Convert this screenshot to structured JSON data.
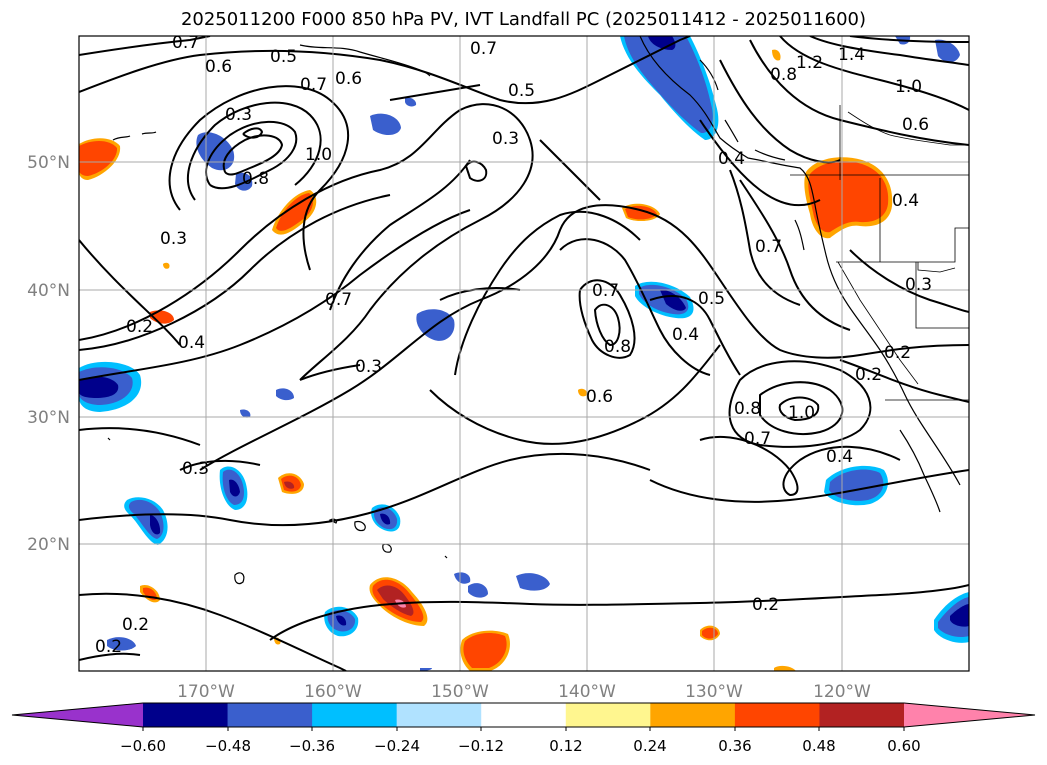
{
  "title": "2025011200 F000 850 hPa PV, IVT Landfall PC (2025011412 - 2025011600)",
  "axes": {
    "lat_labels": [
      "50°N",
      "40°N",
      "30°N",
      "20°N"
    ],
    "lon_labels": [
      "170°W",
      "160°W",
      "150°W",
      "140°W",
      "130°W",
      "120°W"
    ]
  },
  "colorbar": {
    "colors": [
      "#9932cc",
      "#00008b",
      "#3a5fcd",
      "#00bfff",
      "#b0e2ff",
      "#ffffff",
      "#fff68f",
      "#ffa500",
      "#ff4500",
      "#b22222",
      "#ff82ab"
    ],
    "tick_labels": [
      "−0.60",
      "−0.48",
      "−0.36",
      "−0.24",
      "−0.12",
      "0.12",
      "0.24",
      "0.36",
      "0.48",
      "0.60"
    ]
  },
  "contour_labels": [
    "0.7",
    "0.6",
    "0.5",
    "0.7",
    "0.6",
    "0.3",
    "1.0",
    "0.8",
    "0.2",
    "0.7",
    "0.5",
    "0.3",
    "0.4",
    "0.7",
    "0.3",
    "0.3",
    "0.2",
    "1.2",
    "1.4",
    "0.8",
    "1.0",
    "0.6",
    "0.4",
    "0.4",
    "0.7",
    "0.7",
    "0.5",
    "0.8",
    "0.4",
    "0.6",
    "0.8",
    "1.0",
    "0.7",
    "0.4",
    "0.3",
    "0.2",
    "0.3",
    "0.2",
    "0.2",
    "0.2"
  ]
}
